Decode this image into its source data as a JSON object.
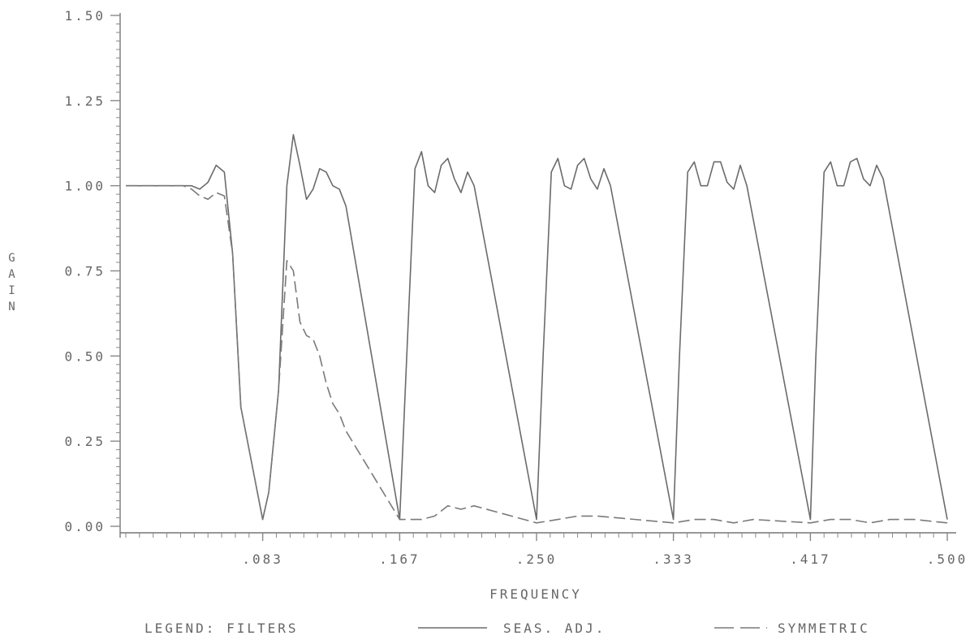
{
  "chart_data": {
    "type": "line",
    "xlabel": "FREQUENCY",
    "ylabel": "GAIN",
    "xlim": [
      0,
      0.5
    ],
    "ylim": [
      0,
      1.5
    ],
    "xticks": [
      {
        "value": 0.0833,
        "label": ".083"
      },
      {
        "value": 0.1667,
        "label": ".167"
      },
      {
        "value": 0.25,
        "label": ".250"
      },
      {
        "value": 0.3333,
        "label": ".333"
      },
      {
        "value": 0.4167,
        "label": ".417"
      },
      {
        "value": 0.5,
        "label": ".500"
      }
    ],
    "yticks": [
      {
        "value": 0.0,
        "label": "0.00"
      },
      {
        "value": 0.25,
        "label": "0.25"
      },
      {
        "value": 0.5,
        "label": "0.50"
      },
      {
        "value": 0.75,
        "label": "0.75"
      },
      {
        "value": 1.0,
        "label": "1.00"
      },
      {
        "value": 1.25,
        "label": "1.25"
      },
      {
        "value": 1.5,
        "label": "1.50"
      }
    ],
    "legend": {
      "title": "LEGEND: FILTERS",
      "placement": "bottom"
    },
    "series": [
      {
        "name": "SEAS. ADJ.",
        "style": "solid",
        "color": "#6b6b6b",
        "x": [
          0,
          0.01,
          0.02,
          0.03,
          0.035,
          0.04,
          0.045,
          0.05,
          0.055,
          0.06,
          0.065,
          0.07,
          0.0833,
          0.087,
          0.093,
          0.098,
          0.102,
          0.106,
          0.11,
          0.114,
          0.118,
          0.122,
          0.126,
          0.13,
          0.134,
          0.1667,
          0.171,
          0.176,
          0.18,
          0.184,
          0.188,
          0.192,
          0.196,
          0.2,
          0.204,
          0.208,
          0.212,
          0.25,
          0.254,
          0.259,
          0.263,
          0.267,
          0.271,
          0.275,
          0.279,
          0.283,
          0.287,
          0.291,
          0.295,
          0.3333,
          0.337,
          0.342,
          0.346,
          0.35,
          0.354,
          0.358,
          0.362,
          0.366,
          0.37,
          0.374,
          0.378,
          0.4167,
          0.42,
          0.425,
          0.429,
          0.433,
          0.437,
          0.441,
          0.445,
          0.449,
          0.453,
          0.457,
          0.461,
          0.5
        ],
        "y": [
          1.0,
          1.0,
          1.0,
          1.0,
          1.0,
          1.0,
          0.99,
          1.01,
          1.06,
          1.04,
          0.8,
          0.35,
          0.02,
          0.1,
          0.4,
          1.0,
          1.15,
          1.06,
          0.96,
          0.99,
          1.05,
          1.04,
          1.0,
          0.99,
          0.94,
          0.02,
          0.5,
          1.05,
          1.1,
          1.0,
          0.98,
          1.06,
          1.08,
          1.02,
          0.98,
          1.04,
          1.0,
          0.02,
          0.5,
          1.04,
          1.08,
          1.0,
          0.99,
          1.06,
          1.08,
          1.02,
          0.99,
          1.05,
          1.0,
          0.02,
          0.5,
          1.04,
          1.07,
          1.0,
          1.0,
          1.07,
          1.07,
          1.01,
          0.99,
          1.06,
          1.0,
          0.02,
          0.5,
          1.04,
          1.07,
          1.0,
          1.0,
          1.07,
          1.08,
          1.02,
          1.0,
          1.06,
          1.02,
          0.02
        ]
      },
      {
        "name": "SYMMETRIC",
        "style": "dashed",
        "color": "#7a7a7a",
        "x": [
          0,
          0.02,
          0.035,
          0.04,
          0.045,
          0.05,
          0.055,
          0.06,
          0.065,
          0.07,
          0.0833,
          0.087,
          0.093,
          0.098,
          0.102,
          0.106,
          0.11,
          0.114,
          0.118,
          0.122,
          0.126,
          0.13,
          0.134,
          0.1667,
          0.171,
          0.18,
          0.188,
          0.196,
          0.204,
          0.212,
          0.25,
          0.263,
          0.275,
          0.287,
          0.3333,
          0.346,
          0.358,
          0.37,
          0.382,
          0.4167,
          0.429,
          0.441,
          0.453,
          0.465,
          0.48,
          0.5
        ],
        "y": [
          1.0,
          1.0,
          1.0,
          0.99,
          0.97,
          0.96,
          0.98,
          0.97,
          0.8,
          0.35,
          0.02,
          0.1,
          0.4,
          0.78,
          0.75,
          0.6,
          0.56,
          0.55,
          0.5,
          0.42,
          0.36,
          0.33,
          0.28,
          0.02,
          0.02,
          0.02,
          0.03,
          0.06,
          0.05,
          0.06,
          0.01,
          0.02,
          0.03,
          0.03,
          0.01,
          0.02,
          0.02,
          0.01,
          0.02,
          0.01,
          0.02,
          0.02,
          0.01,
          0.02,
          0.02,
          0.01
        ]
      }
    ]
  }
}
